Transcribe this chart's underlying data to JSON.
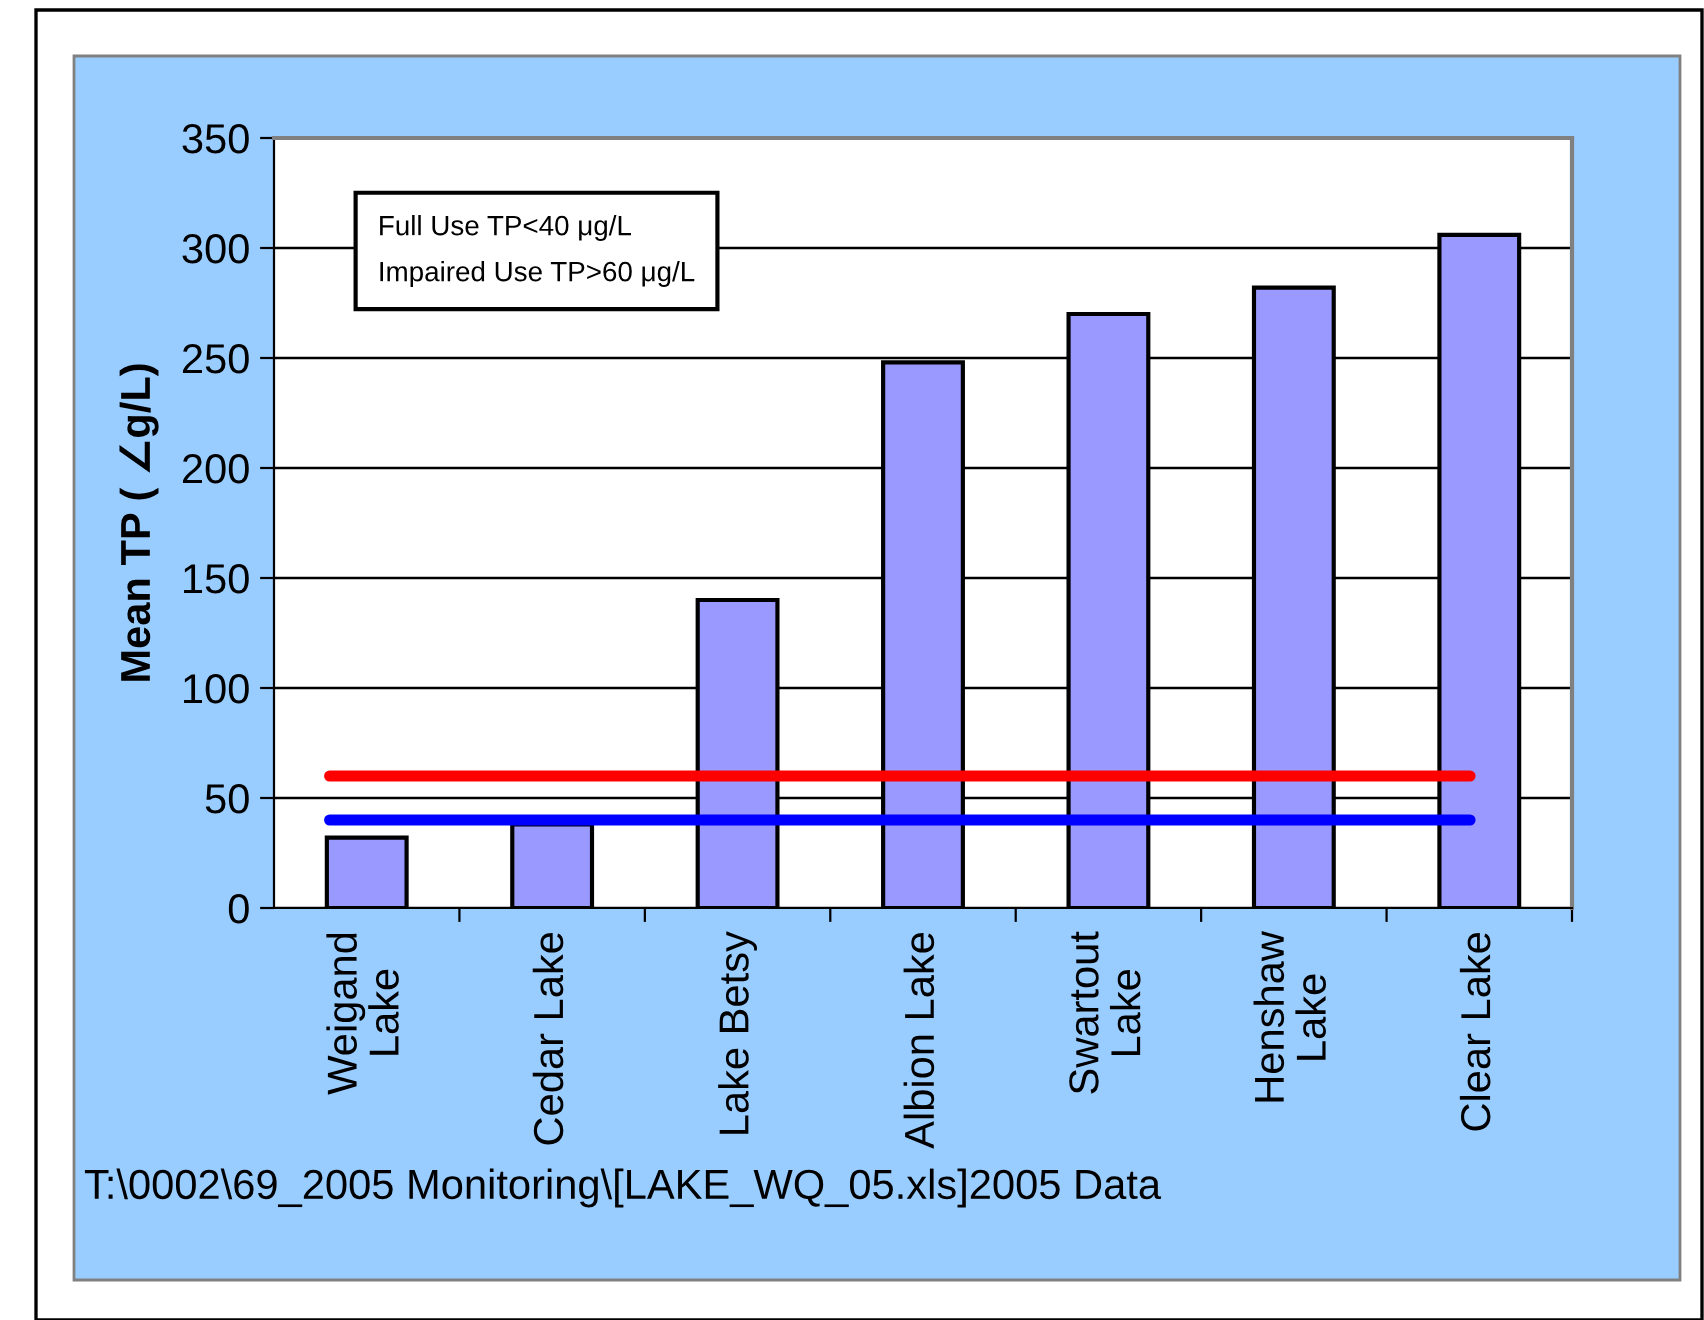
{
  "chart_data": {
    "type": "bar",
    "ylabel": "Mean TP ( ∠g/L)",
    "categories": [
      "Weigand Lake",
      "Cedar Lake",
      "Lake Betsy",
      "Albion Lake",
      "Swartout Lake",
      "Henshaw Lake",
      "Clear Lake"
    ],
    "values": [
      32,
      38,
      140,
      248,
      270,
      282,
      306
    ],
    "color": "#9999ff",
    "ylim": [
      0,
      350
    ],
    "yticks": [
      0,
      50,
      100,
      150,
      200,
      250,
      300,
      350
    ],
    "grid": "y",
    "ref_lines": [
      {
        "axis": "y",
        "value": 60,
        "color": "#ff0000"
      },
      {
        "axis": "y",
        "value": 40,
        "color": "#0000ff"
      }
    ],
    "annotations": [
      "Full Use TP<40 μg/L\nImpaired Use TP>60 μg/L",
      "T:\\0002\\69_2005 Monitoring\\[LAKE_WQ_05.xls]2005 Data"
    ]
  }
}
